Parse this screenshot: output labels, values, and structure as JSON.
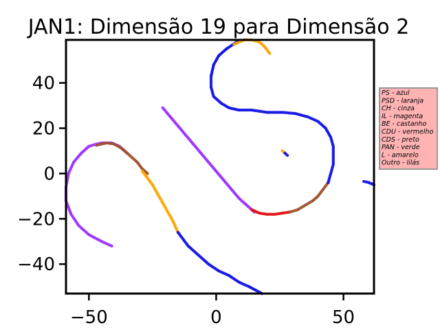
{
  "chart_data": {
    "type": "scatter",
    "title": "JAN1: Dimensão 19 para Dimensão 2",
    "xlabel": "",
    "ylabel": "",
    "xlim": [
      -59,
      62
    ],
    "ylim": [
      -53,
      59
    ],
    "xticks": [
      -50,
      0,
      50
    ],
    "yticks": [
      -40,
      -20,
      0,
      20,
      40
    ],
    "xtick_labels": [
      "−50",
      "0",
      "50"
    ],
    "ytick_labels": [
      "−40",
      "−20",
      "0",
      "20",
      "40"
    ],
    "grid": false,
    "legend_placement": "outside-right",
    "legend_background": "#ffb3b3",
    "legend": [
      "PS - azul",
      "PSD - laranja",
      "CH - cinza",
      "IL - magenta",
      "BE - castanho",
      "CDU - vermelho",
      "CDS - preto",
      "PAN - verde",
      "L - amarelo",
      "Outro - lilás"
    ],
    "colors": {
      "azul": "#1010e6",
      "laranja": "#ffa500",
      "castanho": "#a0522d",
      "vermelho": "#e01010",
      "lilas": "#9b30ff",
      "cinza": "#a0a0a0"
    },
    "series": [
      {
        "color": "lilas",
        "points": [
          [
            -41,
            -32
          ],
          [
            -45,
            -30
          ],
          [
            -50,
            -27
          ],
          [
            -54,
            -23
          ],
          [
            -57,
            -18
          ],
          [
            -59,
            -12
          ],
          [
            -59,
            -6
          ],
          [
            -58,
            0
          ],
          [
            -56,
            5
          ],
          [
            -53,
            9
          ],
          [
            -50,
            12
          ],
          [
            -47,
            13
          ],
          [
            -45,
            13.5
          ],
          [
            -41,
            13.5
          ],
          [
            -38,
            12
          ],
          [
            -35,
            9
          ]
        ]
      },
      {
        "color": "castanho",
        "points": [
          [
            -47,
            12.5
          ],
          [
            -43,
            13.5
          ],
          [
            -40,
            13
          ],
          [
            -37,
            11
          ],
          [
            -35,
            9
          ],
          [
            -31,
            5
          ],
          [
            -29,
            2
          ],
          [
            -27,
            0
          ]
        ]
      },
      {
        "color": "laranja",
        "points": [
          [
            -29,
            1
          ],
          [
            -27,
            -2
          ],
          [
            -25,
            -5
          ],
          [
            -23,
            -9
          ],
          [
            -21,
            -13
          ],
          [
            -19,
            -17
          ],
          [
            -17,
            -21
          ],
          [
            -15,
            -26
          ]
        ]
      },
      {
        "color": "azul",
        "points": [
          [
            -15,
            -26
          ],
          [
            -11,
            -32
          ],
          [
            -7,
            -36
          ],
          [
            -3,
            -40
          ],
          [
            1,
            -43
          ],
          [
            5,
            -45
          ],
          [
            9,
            -48
          ],
          [
            13,
            -50
          ],
          [
            18,
            -53
          ]
        ]
      },
      {
        "color": "lilas",
        "points": [
          [
            -21,
            29
          ],
          [
            -18,
            25
          ],
          [
            -15,
            21
          ],
          [
            -12,
            17
          ],
          [
            -9,
            13
          ],
          [
            -6,
            9
          ],
          [
            -3,
            5
          ],
          [
            0,
            1
          ],
          [
            3,
            -3
          ],
          [
            6,
            -7
          ],
          [
            9,
            -11
          ],
          [
            12,
            -14
          ],
          [
            15,
            -17
          ]
        ]
      },
      {
        "color": "vermelho",
        "points": [
          [
            14,
            -16
          ],
          [
            17,
            -17.5
          ],
          [
            20,
            -18
          ],
          [
            23,
            -18
          ],
          [
            26,
            -17.5
          ],
          [
            29,
            -17
          ]
        ]
      },
      {
        "color": "castanho",
        "points": [
          [
            29,
            -17
          ],
          [
            32,
            -16
          ],
          [
            35,
            -14
          ],
          [
            38,
            -12
          ],
          [
            40,
            -10
          ],
          [
            42,
            -7
          ],
          [
            44,
            -4
          ]
        ]
      },
      {
        "color": "azul",
        "points": [
          [
            44,
            -4
          ],
          [
            45,
            0
          ],
          [
            46,
            4
          ],
          [
            46,
            8
          ],
          [
            46,
            12
          ],
          [
            45,
            16
          ],
          [
            43,
            20
          ],
          [
            40,
            23
          ],
          [
            36,
            25
          ],
          [
            31,
            26.5
          ],
          [
            26,
            27
          ],
          [
            20,
            27
          ],
          [
            14,
            28
          ],
          [
            9,
            28
          ],
          [
            5,
            29
          ],
          [
            2,
            31
          ],
          [
            -1,
            34
          ],
          [
            -2,
            38
          ],
          [
            -2,
            43
          ],
          [
            -1,
            48
          ],
          [
            1,
            52
          ],
          [
            4,
            55
          ],
          [
            8,
            58
          ],
          [
            11,
            59
          ]
        ]
      },
      {
        "color": "laranja",
        "points": [
          [
            7,
            57
          ],
          [
            11,
            59
          ],
          [
            14,
            59
          ],
          [
            17,
            58
          ],
          [
            19,
            56
          ],
          [
            21,
            53
          ]
        ]
      },
      {
        "color": "laranja",
        "points": [
          [
            26,
            10
          ],
          [
            27,
            9
          ]
        ]
      },
      {
        "color": "azul",
        "points": [
          [
            27,
            9
          ],
          [
            28,
            8
          ]
        ]
      },
      {
        "color": "azul",
        "points": [
          [
            58,
            -3.5
          ],
          [
            60,
            -4
          ],
          [
            62,
            -5
          ]
        ]
      }
    ]
  }
}
